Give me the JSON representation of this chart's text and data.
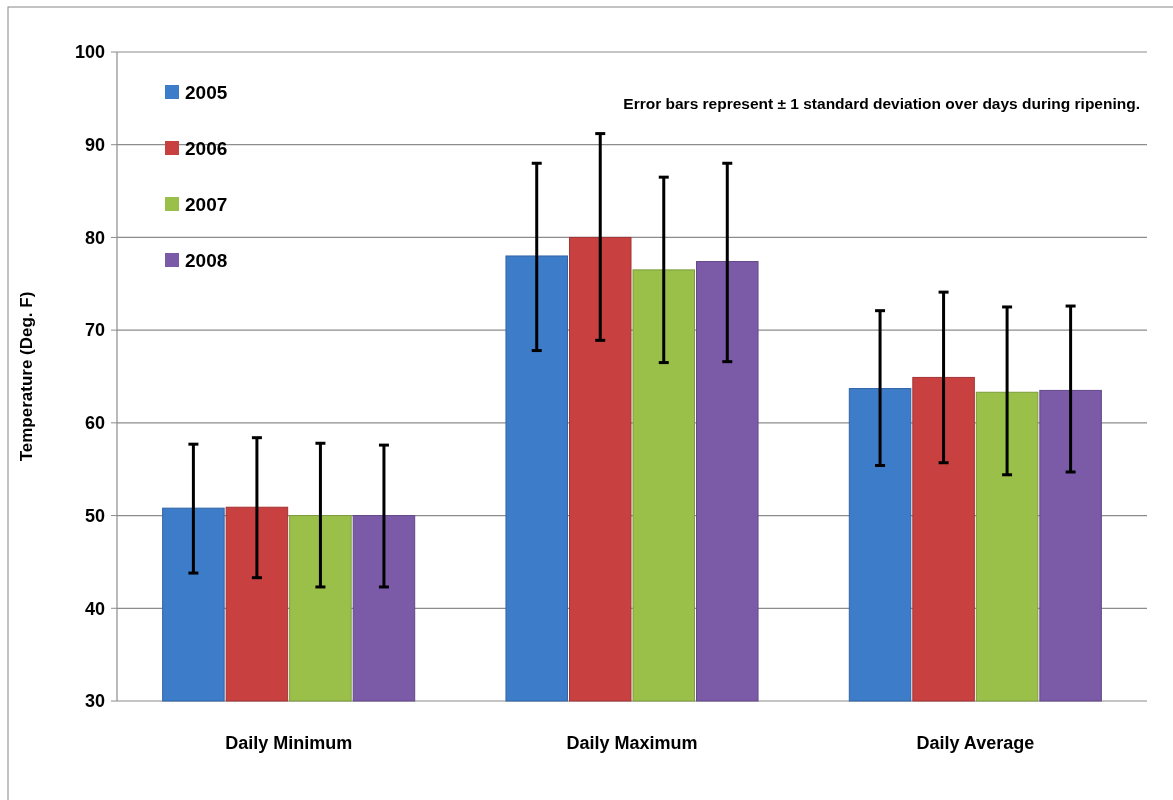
{
  "chart_data": {
    "type": "bar",
    "ylabel": "Temperature (Deg. F)",
    "categories": [
      "Daily Minimum",
      "Daily Maximum",
      "Daily Average"
    ],
    "series": [
      {
        "name": "2005",
        "color": "#3d7cc9",
        "values": [
          50.8,
          78,
          63.7
        ],
        "errors": [
          [
            43.8,
            57.7
          ],
          [
            67.8,
            88
          ],
          [
            55.4,
            72.1
          ]
        ]
      },
      {
        "name": "2006",
        "color": "#c94040",
        "values": [
          50.9,
          80,
          64.9
        ],
        "errors": [
          [
            43.3,
            58.4
          ],
          [
            68.9,
            91.2
          ],
          [
            55.7,
            74.1
          ]
        ]
      },
      {
        "name": "2007",
        "color": "#9bc04a",
        "values": [
          50,
          76.5,
          63.3
        ],
        "errors": [
          [
            42.3,
            57.8
          ],
          [
            66.5,
            86.5
          ],
          [
            54.4,
            72.5
          ]
        ]
      },
      {
        "name": "2008",
        "color": "#7b5ba8",
        "values": [
          50,
          77.4,
          63.5
        ],
        "errors": [
          [
            42.3,
            57.6
          ],
          [
            66.6,
            88
          ],
          [
            54.7,
            72.6
          ]
        ]
      }
    ],
    "ylim": [
      30,
      100
    ],
    "yticks": [
      30,
      40,
      50,
      60,
      70,
      80,
      90,
      100
    ],
    "grid": "y",
    "legend": "top left",
    "annotations": [
      "Error bars represent ± 1 standard deviation over days during ripening."
    ]
  }
}
